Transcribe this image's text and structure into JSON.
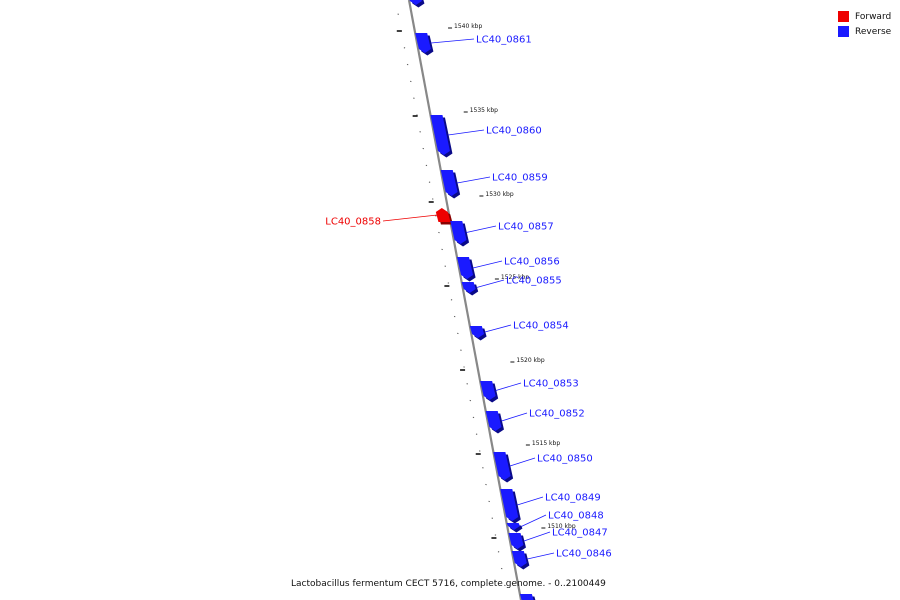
{
  "legend": {
    "forward_label": "Forward",
    "forward_color": "#ee0000",
    "reverse_label": "Reverse",
    "reverse_color": "#1a1aff"
  },
  "caption": "Lactobacillus fermentum CECT 5716, complete genome. - 0..2100449",
  "scale_labels": [
    "1540 kbp",
    "1535 kbp",
    "1530 kbp",
    "1525 kbp",
    "1520 kbp",
    "1515 kbp",
    "1510 kbp"
  ],
  "genes": [
    {
      "label": "",
      "strand": "reverse"
    },
    {
      "label": "LC40_0861",
      "strand": "reverse"
    },
    {
      "label": "LC40_0860",
      "strand": "reverse"
    },
    {
      "label": "LC40_0859",
      "strand": "reverse"
    },
    {
      "label": "LC40_0858",
      "strand": "forward"
    },
    {
      "label": "LC40_0857",
      "strand": "reverse"
    },
    {
      "label": "LC40_0856",
      "strand": "reverse"
    },
    {
      "label": "LC40_0855",
      "strand": "reverse"
    },
    {
      "label": "LC40_0854",
      "strand": "reverse"
    },
    {
      "label": "LC40_0853",
      "strand": "reverse"
    },
    {
      "label": "LC40_0852",
      "strand": "reverse"
    },
    {
      "label": "LC40_0850",
      "strand": "reverse"
    },
    {
      "label": "LC40_0849",
      "strand": "reverse"
    },
    {
      "label": "LC40_0848",
      "strand": "reverse"
    },
    {
      "label": "LC40_0847",
      "strand": "reverse"
    },
    {
      "label": "LC40_0846",
      "strand": "reverse"
    },
    {
      "label": "",
      "strand": "reverse"
    }
  ]
}
